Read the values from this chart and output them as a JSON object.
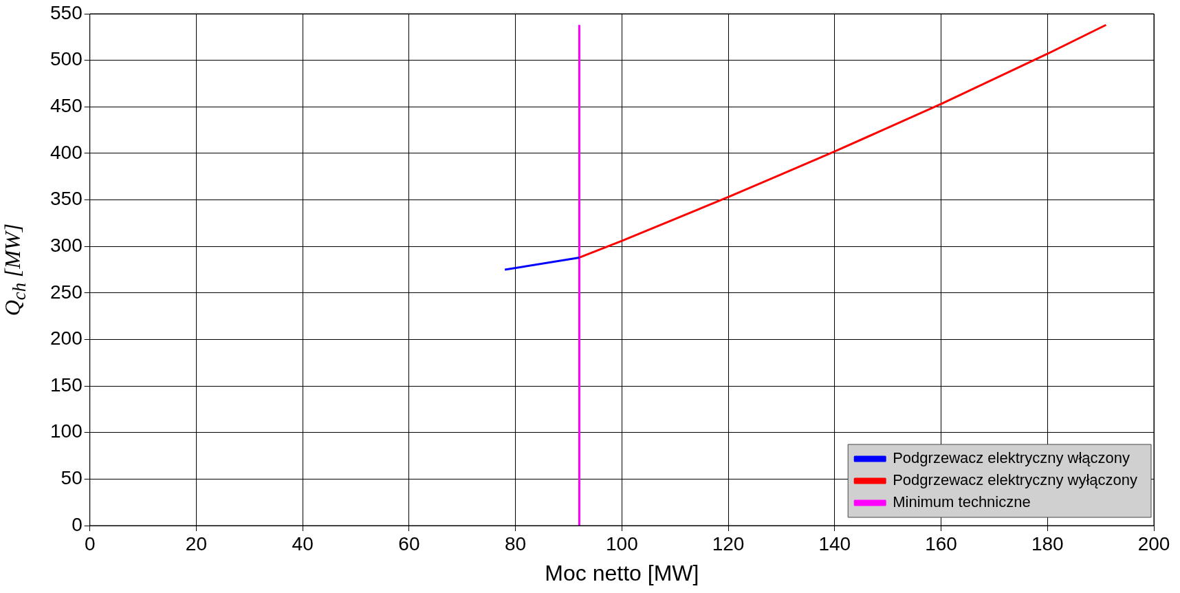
{
  "chart_data": {
    "type": "line",
    "xlabel": "Moc netto [MW]",
    "ylabel": "Q$_{ch}$ [MW]",
    "xlim": [
      0,
      200
    ],
    "xticks": [
      0,
      20,
      40,
      60,
      80,
      100,
      120,
      140,
      160,
      180,
      200
    ],
    "ylim": [
      0,
      550
    ],
    "yticks": [
      0,
      50,
      100,
      150,
      200,
      250,
      300,
      350,
      400,
      450,
      500,
      550
    ],
    "grid": true,
    "legend": "bottom right",
    "marker": "none",
    "line_style": "solid",
    "series": [
      {
        "name": "Podgrzewacz elektryczny włączony",
        "color": "#0000ff",
        "x": [
          78,
          92
        ],
        "values": [
          275,
          288
        ]
      },
      {
        "name": "Podgrzewacz elektryczny wyłączony",
        "color": "#ff0000",
        "x": [
          92,
          100,
          120,
          140,
          160,
          180,
          191
        ],
        "values": [
          288,
          306,
          353,
          402,
          453,
          507,
          538
        ]
      },
      {
        "name": "Minimum techniczne",
        "color": "#ff00ff",
        "x": [
          92,
          92
        ],
        "values": [
          0,
          538
        ]
      }
    ]
  }
}
